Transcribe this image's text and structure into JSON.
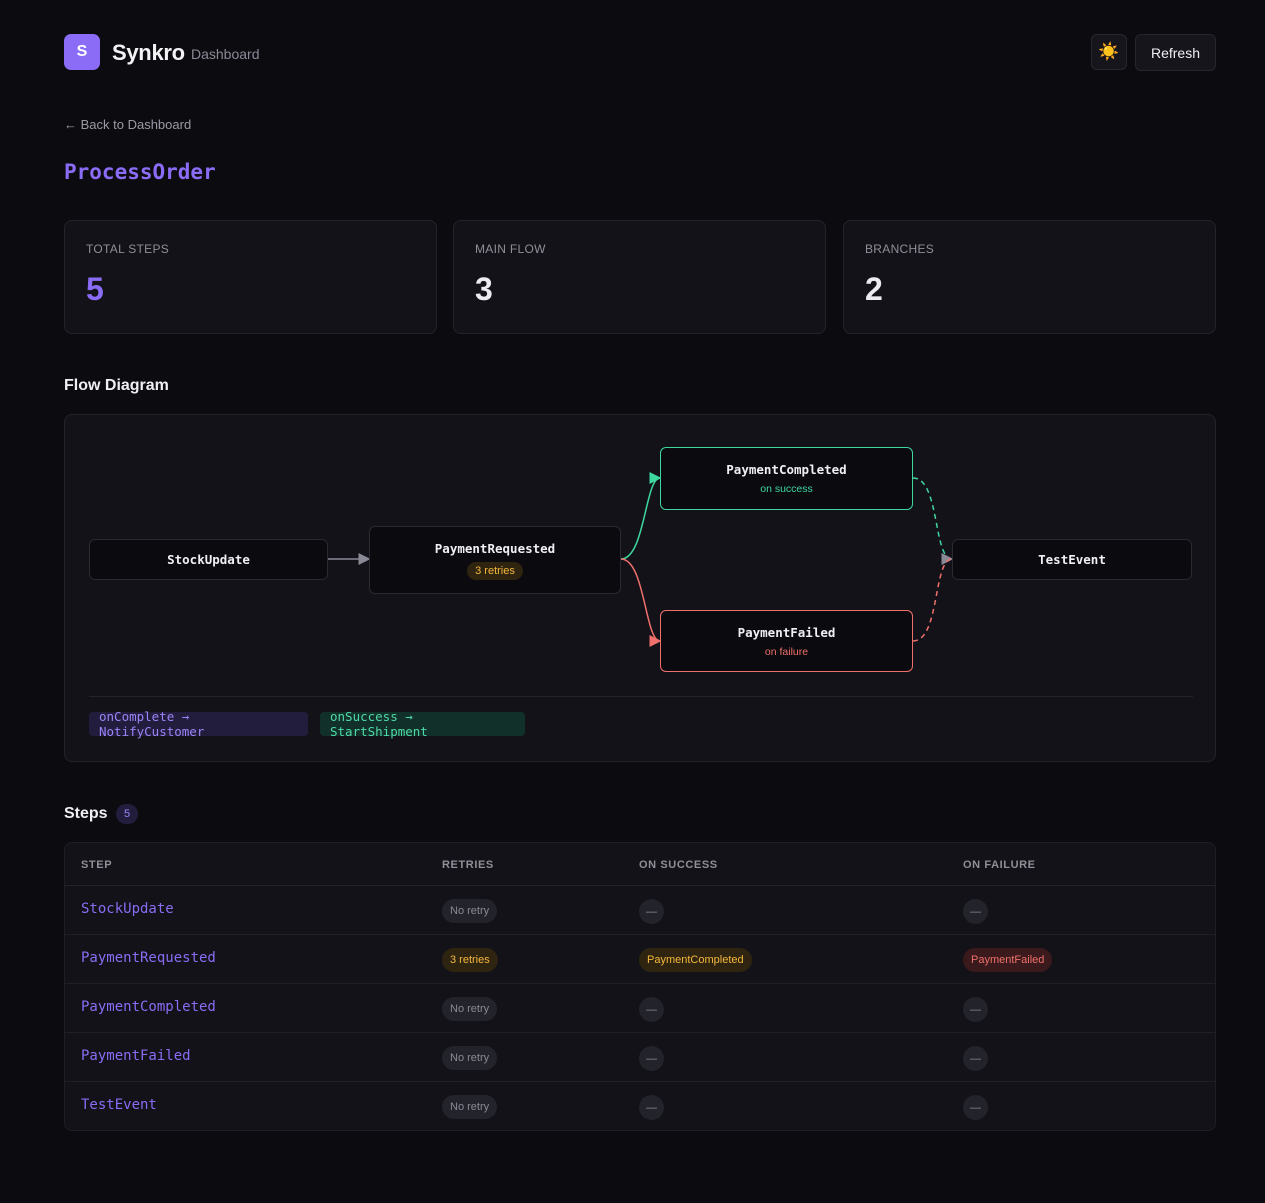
{
  "header": {
    "logo_letter": "S",
    "brand": "Synkro",
    "subtitle": "Dashboard",
    "theme_icon": "☀️",
    "refresh_label": "Refresh"
  },
  "back_link": "← Back to Dashboard",
  "page_title": "ProcessOrder",
  "stats": [
    {
      "label": "TOTAL STEPS",
      "value": "5"
    },
    {
      "label": "MAIN FLOW",
      "value": "3"
    },
    {
      "label": "BRANCHES",
      "value": "2"
    }
  ],
  "flow": {
    "title": "Flow Diagram",
    "nodes": {
      "stock": {
        "title": "StockUpdate"
      },
      "requested": {
        "title": "PaymentRequested",
        "badge": "3 retries"
      },
      "completed": {
        "title": "PaymentCompleted",
        "sub": "on success"
      },
      "failed": {
        "title": "PaymentFailed",
        "sub": "on failure"
      },
      "test": {
        "title": "TestEvent"
      }
    },
    "hooks": [
      {
        "text": "onComplete → NotifyCustomer"
      },
      {
        "text": "onSuccess → StartShipment"
      }
    ]
  },
  "steps": {
    "title": "Steps",
    "count": "5",
    "columns": [
      "STEP",
      "RETRIES",
      "ON SUCCESS",
      "ON FAILURE"
    ],
    "rows": [
      {
        "step": "StockUpdate",
        "retries": "No retry",
        "on_success": "—",
        "on_failure": "—"
      },
      {
        "step": "PaymentRequested",
        "retries": "3 retries",
        "on_success": "PaymentCompleted",
        "on_failure": "PaymentFailed"
      },
      {
        "step": "PaymentCompleted",
        "retries": "No retry",
        "on_success": "—",
        "on_failure": "—"
      },
      {
        "step": "PaymentFailed",
        "retries": "No retry",
        "on_success": "—",
        "on_failure": "—"
      },
      {
        "step": "TestEvent",
        "retries": "No retry",
        "on_success": "—",
        "on_failure": "—"
      }
    ]
  },
  "colors": {
    "accent": "#8b6cf6",
    "success": "#3fd7a0",
    "failure": "#f0706b",
    "warning": "#f5b83d",
    "background": "#0c0c10"
  }
}
